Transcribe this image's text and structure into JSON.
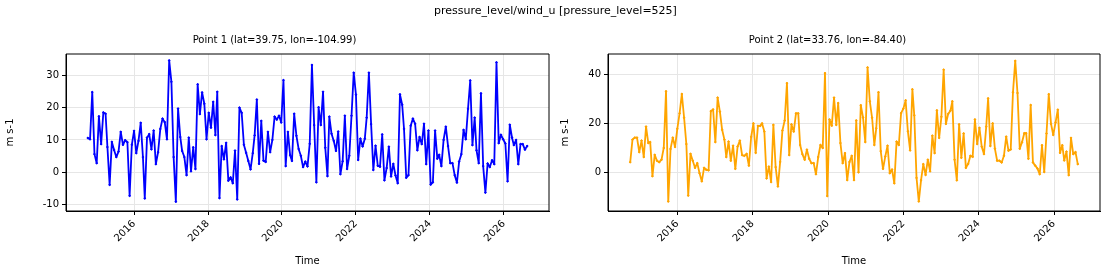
{
  "chart_data": [
    {
      "type": "line",
      "title": "pressure_level/wind_u [pressure_level=525]",
      "subtitle": "Point 1 (lat=39.75, lon=-104.99)",
      "xlabel": "Time",
      "ylabel": "m s-1",
      "x": [
        2014.75,
        2014.81,
        2014.87,
        2014.93,
        2014.99,
        2015.05,
        2015.11,
        2015.17,
        2015.23,
        2015.28,
        2015.34,
        2015.4,
        2015.46,
        2015.52,
        2015.58,
        2015.64,
        2015.7,
        2015.76,
        2015.82,
        2015.88,
        2015.94,
        2016.0,
        2016.06,
        2016.12,
        2016.18,
        2016.24,
        2016.29,
        2016.35,
        2016.41,
        2016.47,
        2016.53,
        2016.59,
        2016.65,
        2016.71,
        2016.77,
        2016.83,
        2016.89,
        2016.95,
        2017.01,
        2017.07,
        2017.13,
        2017.19,
        2017.25,
        2017.3,
        2017.36,
        2017.42,
        2017.48,
        2017.54,
        2017.6,
        2017.66,
        2017.72,
        2017.78,
        2017.84,
        2017.9,
        2017.96,
        2018.02,
        2018.08,
        2018.14,
        2018.2,
        2018.25,
        2018.31,
        2018.37,
        2018.43,
        2018.49,
        2018.55,
        2018.61,
        2018.67,
        2018.73,
        2018.79,
        2018.85,
        2018.91,
        2018.97,
        2019.03,
        2019.09,
        2019.15,
        2019.21,
        2019.26,
        2019.32,
        2019.38,
        2019.44,
        2019.5,
        2019.56,
        2019.62,
        2019.68,
        2019.74,
        2019.8,
        2019.86,
        2019.92,
        2019.98,
        2020.04,
        2020.1,
        2020.16,
        2020.22,
        2020.27,
        2020.33,
        2020.39,
        2020.45,
        2020.51,
        2020.57,
        2020.63,
        2020.69,
        2020.75,
        2020.81,
        2020.87,
        2020.93,
        2020.99,
        2021.05,
        2021.11,
        2021.17,
        2021.23,
        2021.28,
        2021.34,
        2021.4,
        2021.46,
        2021.52,
        2021.58,
        2021.64,
        2021.7,
        2021.76,
        2021.82,
        2021.88,
        2021.94,
        2022.0,
        2022.06,
        2022.12,
        2022.18,
        2022.24,
        2022.29,
        2022.35,
        2022.41,
        2022.47,
        2022.53,
        2022.59,
        2022.65,
        2022.71,
        2022.77,
        2022.83,
        2022.89,
        2022.95,
        2023.01,
        2023.07,
        2023.13,
        2023.19,
        2023.25,
        2023.3,
        2023.36,
        2023.42,
        2023.48,
        2023.54,
        2023.6,
        2023.66,
        2023.72,
        2023.78,
        2023.84,
        2023.9,
        2023.96,
        2024.02,
        2024.08,
        2024.14,
        2024.2,
        2024.25,
        2024.31,
        2024.37,
        2024.43,
        2024.49,
        2024.55,
        2024.61,
        2024.67,
        2024.73,
        2024.79,
        2024.85,
        2024.91,
        2024.97,
        2025.03,
        2025.09,
        2025.15,
        2025.21,
        2025.26,
        2025.32,
        2025.38,
        2025.44,
        2025.5,
        2025.56,
        2025.62,
        2025.68,
        2025.74,
        2025.8,
        2025.86,
        2025.92,
        2025.98,
        2026.04,
        2026.1,
        2026.16,
        2026.22,
        2026.27,
        2026.33,
        2026.39,
        2026.45,
        2026.51,
        2026.57,
        2026.63
      ],
      "series": [
        {
          "color": "#0000ff",
          "values": [
            10.6,
            10.2,
            24.8,
            5.6,
            2.8,
            17.3,
            8.7,
            18.5,
            18.1,
            7.8,
            -3.9,
            9.4,
            6.9,
            4.7,
            6.4,
            12.5,
            8.5,
            9.9,
            9.3,
            -7.3,
            8.5,
            12.8,
            5.9,
            9.7,
            15.3,
            4.7,
            -8.1,
            10.7,
            11.8,
            7.1,
            12.9,
            2.5,
            6.2,
            13.4,
            16.6,
            15.5,
            10.2,
            34.6,
            28.0,
            4.7,
            -9.1,
            19.7,
            10.9,
            6.6,
            4.7,
            -0.9,
            10.7,
            0.3,
            7.7,
            1.0,
            27.2,
            18.0,
            24.7,
            21.2,
            10.2,
            18.4,
            13.8,
            21.8,
            11.5,
            24.9,
            -8.0,
            8.1,
            4.0,
            9.1,
            -2.6,
            -1.6,
            -3.4,
            6.7,
            -8.4,
            20.0,
            18.4,
            8.5,
            6.0,
            3.5,
            0.9,
            5.9,
            11.4,
            22.5,
            2.6,
            15.9,
            3.6,
            3.2,
            12.5,
            6.2,
            10.0,
            17.2,
            16.3,
            17.5,
            15.4,
            28.5,
            1.9,
            12.5,
            5.3,
            3.5,
            18.1,
            11.3,
            7.2,
            5.1,
            1.6,
            3.3,
            1.8,
            8.8,
            33.2,
            14.6,
            -3.1,
            20.1,
            14.6,
            24.9,
            7.6,
            -1.2,
            17.2,
            11.9,
            9.7,
            6.6,
            12.6,
            -0.6,
            3.4,
            17.5,
            1.0,
            5.1,
            17.5,
            30.8,
            24.0,
            3.8,
            10.4,
            8.0,
            10.4,
            16.9,
            30.8,
            14.9,
            0.7,
            8.2,
            2.0,
            1.7,
            11.7,
            -2.5,
            1.3,
            7.9,
            -1.3,
            2.6,
            -1.0,
            -3.4,
            24.1,
            20.9,
            13.4,
            -1.7,
            -0.9,
            14.4,
            16.6,
            15.0,
            6.8,
            10.9,
            8.7,
            15.0,
            2.5,
            12.9,
            -3.8,
            -3.1,
            12.9,
            4.2,
            5.4,
            1.9,
            10.0,
            14.1,
            8.1,
            2.8,
            2.8,
            -0.9,
            -3.2,
            3.3,
            5.6,
            13.1,
            10.2,
            19.6,
            28.4,
            8.4,
            16.9,
            6.8,
            2.8,
            24.4,
            1.9,
            -6.3,
            2.7,
            1.6,
            3.7,
            2.5,
            34.0,
            9.0,
            11.6,
            10.2,
            8.9,
            -2.8,
            14.7,
            10.7,
            8.4,
            10.0,
            2.5,
            8.7,
            8.7,
            7.0,
            8.1
          ]
        }
      ],
      "xlim": [
        2014.16,
        2027.22
      ],
      "xticks": [
        2016,
        2018,
        2020,
        2022,
        2024,
        2026
      ],
      "ylim": [
        -12,
        36.6
      ],
      "yticks": [
        -10,
        0,
        10,
        20,
        30
      ],
      "grid": true,
      "marker": "circle",
      "legend": false
    },
    {
      "type": "line",
      "subtitle": "Point 2 (lat=33.76, lon=-84.40)",
      "xlabel": "Time",
      "ylabel": "m s-1",
      "x": [
        2014.75,
        2014.81,
        2014.87,
        2014.93,
        2014.99,
        2015.05,
        2015.11,
        2015.17,
        2015.23,
        2015.28,
        2015.34,
        2015.4,
        2015.46,
        2015.52,
        2015.58,
        2015.64,
        2015.7,
        2015.76,
        2015.82,
        2015.88,
        2015.94,
        2016.0,
        2016.06,
        2016.12,
        2016.18,
        2016.24,
        2016.29,
        2016.35,
        2016.41,
        2016.47,
        2016.53,
        2016.59,
        2016.65,
        2016.71,
        2016.77,
        2016.83,
        2016.89,
        2016.95,
        2017.01,
        2017.07,
        2017.13,
        2017.19,
        2017.25,
        2017.3,
        2017.36,
        2017.42,
        2017.48,
        2017.54,
        2017.6,
        2017.66,
        2017.72,
        2017.78,
        2017.84,
        2017.9,
        2017.96,
        2018.02,
        2018.08,
        2018.14,
        2018.2,
        2018.25,
        2018.31,
        2018.37,
        2018.43,
        2018.49,
        2018.55,
        2018.61,
        2018.67,
        2018.73,
        2018.79,
        2018.85,
        2018.91,
        2018.97,
        2019.03,
        2019.09,
        2019.15,
        2019.21,
        2019.26,
        2019.32,
        2019.38,
        2019.44,
        2019.5,
        2019.56,
        2019.62,
        2019.68,
        2019.74,
        2019.8,
        2019.86,
        2019.92,
        2019.98,
        2020.04,
        2020.1,
        2020.16,
        2020.22,
        2020.27,
        2020.33,
        2020.39,
        2020.45,
        2020.51,
        2020.57,
        2020.63,
        2020.69,
        2020.75,
        2020.81,
        2020.87,
        2020.93,
        2020.99,
        2021.05,
        2021.11,
        2021.17,
        2021.23,
        2021.28,
        2021.34,
        2021.4,
        2021.46,
        2021.52,
        2021.58,
        2021.64,
        2021.7,
        2021.76,
        2021.82,
        2021.88,
        2021.94,
        2022.0,
        2022.06,
        2022.12,
        2022.18,
        2022.24,
        2022.29,
        2022.35,
        2022.41,
        2022.47,
        2022.53,
        2022.59,
        2022.65,
        2022.71,
        2022.77,
        2022.83,
        2022.89,
        2022.95,
        2023.01,
        2023.07,
        2023.13,
        2023.19,
        2023.25,
        2023.3,
        2023.36,
        2023.42,
        2023.48,
        2023.54,
        2023.6,
        2023.66,
        2023.72,
        2023.78,
        2023.84,
        2023.9,
        2023.96,
        2024.02,
        2024.08,
        2024.14,
        2024.2,
        2024.25,
        2024.31,
        2024.37,
        2024.43,
        2024.49,
        2024.55,
        2024.61,
        2024.67,
        2024.73,
        2024.79,
        2024.85,
        2024.91,
        2024.97,
        2025.03,
        2025.09,
        2025.15,
        2025.21,
        2025.26,
        2025.32,
        2025.38,
        2025.44,
        2025.5,
        2025.56,
        2025.62,
        2025.68,
        2025.74,
        2025.8,
        2025.86,
        2025.92,
        2025.98,
        2026.04,
        2026.1,
        2026.16,
        2026.22,
        2026.27,
        2026.33,
        2026.39,
        2026.45,
        2026.51,
        2026.57,
        2026.63
      ],
      "series": [
        {
          "color": "#ffa500",
          "values": [
            4.1,
            13.3,
            14.1,
            14.1,
            8.2,
            12.9,
            6.2,
            18.6,
            11.9,
            12.3,
            -1.6,
            7.1,
            4.7,
            4.1,
            5.1,
            9.9,
            33.0,
            -11.9,
            9.5,
            14.1,
            10.3,
            17.7,
            24.0,
            31.9,
            22.2,
            11.5,
            -9.5,
            7.5,
            4.7,
            1.8,
            3.7,
            -0.4,
            -3.7,
            1.8,
            1.0,
            0.8,
            24.9,
            25.6,
            12.3,
            30.4,
            24.7,
            17.3,
            13.3,
            6.2,
            12.5,
            4.7,
            10.8,
            1.4,
            10.5,
            12.9,
            7.0,
            6.7,
            7.5,
            2.7,
            14.4,
            19.9,
            7.9,
            18.9,
            18.9,
            19.9,
            16.6,
            -2.5,
            2.3,
            -4.0,
            19.3,
            2.1,
            -5.8,
            4.2,
            17.0,
            21.1,
            36.3,
            7.0,
            19.5,
            16.6,
            24.0,
            24.0,
            11.1,
            7.4,
            5.1,
            9.2,
            5.5,
            3.7,
            3.7,
            -0.8,
            6.2,
            11.1,
            9.9,
            40.4,
            -9.7,
            21.5,
            19.0,
            30.4,
            19.3,
            28.2,
            11.9,
            3.7,
            7.8,
            -3.2,
            4.2,
            6.7,
            -3.2,
            21.1,
            0.0,
            27.3,
            22.3,
            12.3,
            42.7,
            28.9,
            22.2,
            11.1,
            17.9,
            32.6,
            8.6,
            1.4,
            6.4,
            10.8,
            -0.4,
            1.1,
            -4.5,
            12.5,
            11.1,
            24.1,
            25.9,
            29.3,
            16.7,
            8.9,
            33.8,
            23.2,
            -2.3,
            -11.9,
            -3.2,
            3.3,
            -1.1,
            5.1,
            0.4,
            14.9,
            7.8,
            25.2,
            14.0,
            22.6,
            41.8,
            19.7,
            23.8,
            25.1,
            28.9,
            5.1,
            -3.3,
            19.5,
            5.9,
            15.8,
            1.8,
            3.4,
            6.7,
            6.3,
            21.5,
            11.5,
            18.1,
            10.4,
            7.4,
            18.6,
            30.1,
            10.7,
            19.9,
            9.6,
            4.7,
            4.7,
            4.0,
            6.7,
            14.5,
            8.8,
            9.3,
            32.6,
            45.4,
            32.3,
            9.6,
            12.2,
            15.9,
            15.9,
            5.5,
            27.4,
            4.0,
            2.7,
            1.5,
            -0.8,
            11.0,
            0.1,
            15.8,
            31.8,
            19.7,
            15.2,
            20.3,
            25.5,
            7.9,
            11.0,
            4.8,
            8.4,
            -1.2,
            14.0,
            7.4,
            8.2,
            3.3
          ]
        }
      ],
      "xlim": [
        2014.16,
        2027.22
      ],
      "xticks": [
        2016,
        2018,
        2020,
        2022,
        2024,
        2026
      ],
      "ylim": [
        -15.8,
        48.2
      ],
      "yticks": [
        0,
        20,
        40
      ],
      "grid": true,
      "marker": "circle",
      "legend": false
    }
  ]
}
